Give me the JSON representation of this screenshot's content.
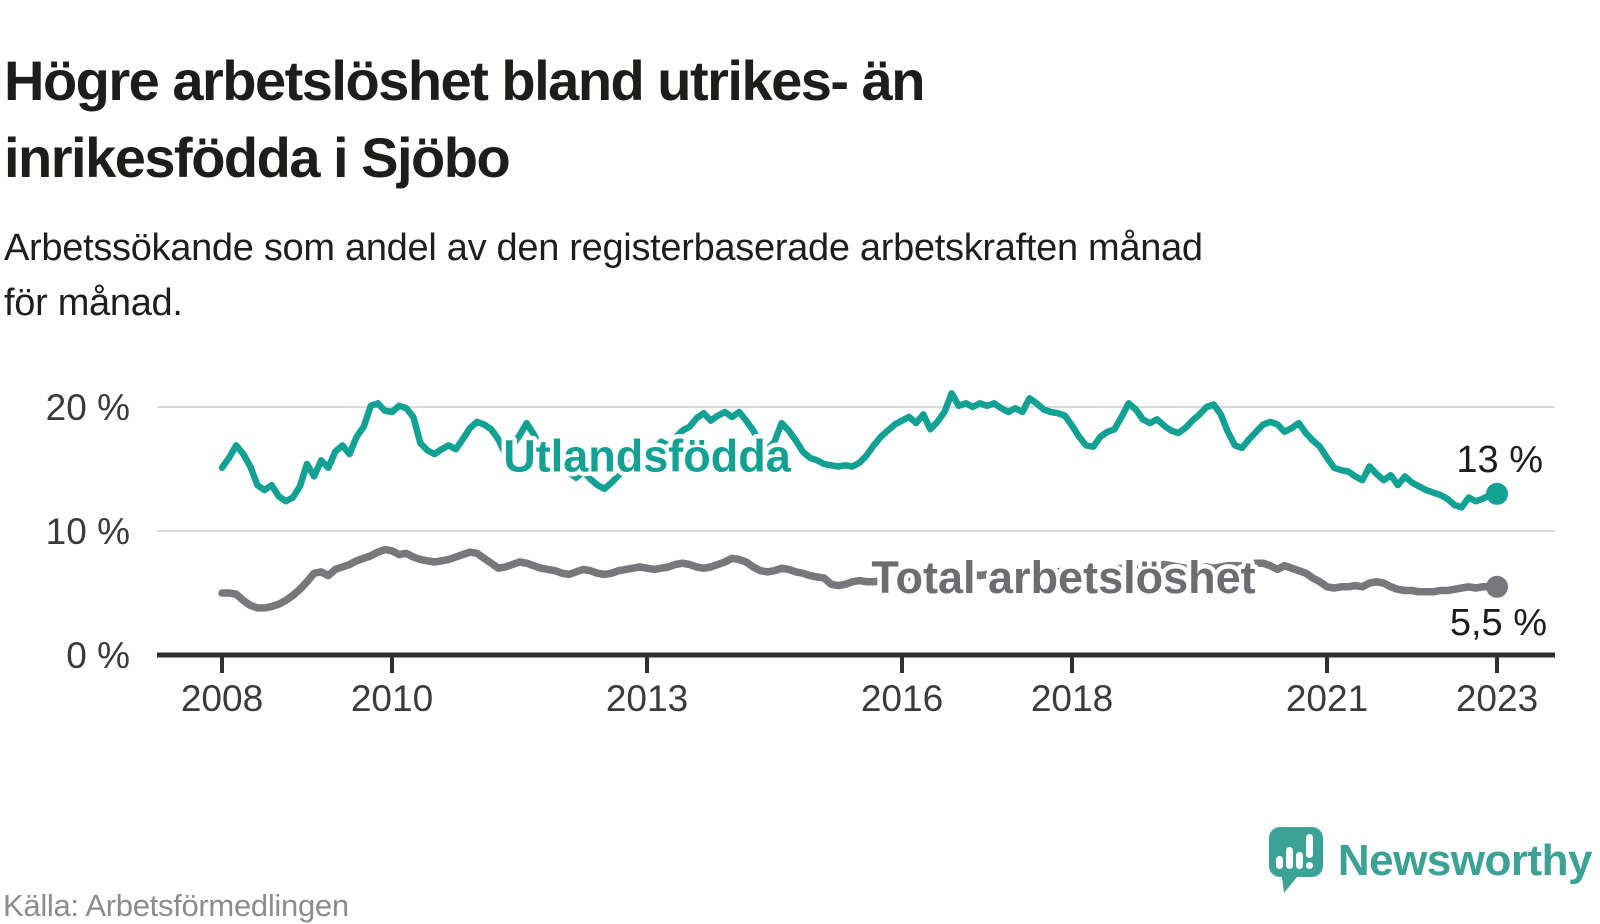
{
  "header": {
    "title": "Högre arbetslöshet bland utrikes- än\ninrikesfödda i Sjöbo",
    "subtitle": "Arbetssökande som andel av den registerbaserade arbetskraften månad\nför månad."
  },
  "footer": {
    "source": "Källa: Arbetsförmedlingen",
    "brand": "Newsworthy"
  },
  "colors": {
    "series_utlandsfodda": "#12a192",
    "series_total": "#78787c",
    "series_total_label": "#6c6c71",
    "grid": "#dadada",
    "axis": "#303030",
    "tick_label": "#3b3b3b",
    "value_label": "#1d1d1b",
    "title_text": "#1d1d1b",
    "source_text": "#8d8d8d",
    "logo": "#3da296"
  },
  "chart_data": {
    "type": "line",
    "title": "Högre arbetslöshet bland utrikes- än inrikesfödda i Sjöbo",
    "xlabel": "",
    "ylabel": "Arbetssökande som andel av den registerbaserade arbetskraften (%)",
    "xlim": [
      2008,
      2023.2
    ],
    "ylim": [
      0,
      22
    ],
    "grid": "horizontal",
    "legend_position": "inline-labels",
    "y_ticks": [
      {
        "value": 20,
        "label": "20 %"
      },
      {
        "value": 10,
        "label": "10 %"
      },
      {
        "value": 0,
        "label": "0 %"
      }
    ],
    "x_ticks": [
      {
        "year": 2008,
        "label": "2008"
      },
      {
        "year": 2010,
        "label": "2010"
      },
      {
        "year": 2013,
        "label": "2013"
      },
      {
        "year": 2016,
        "label": "2016"
      },
      {
        "year": 2018,
        "label": "2018"
      },
      {
        "year": 2021,
        "label": "2021"
      },
      {
        "year": 2023,
        "label": "2023"
      }
    ],
    "series": [
      {
        "name": "Utlandsfödda",
        "color": "#12a192",
        "stroke_width": 6.5,
        "end_label": "13 %",
        "end_value": 13.0,
        "label_pos": {
          "x": 2013.0,
          "y": 16.1
        },
        "x_start": 2008,
        "points_per_year": 12,
        "values": [
          15.1,
          15.9,
          16.9,
          16.2,
          15.2,
          13.7,
          13.3,
          13.7,
          12.8,
          12.4,
          12.7,
          13.6,
          15.4,
          14.4,
          15.7,
          15.1,
          16.4,
          16.9,
          16.2,
          17.6,
          18.4,
          20.1,
          20.3,
          19.7,
          19.6,
          20.1,
          19.9,
          19.2,
          17.1,
          16.5,
          16.2,
          16.6,
          16.9,
          16.6,
          17.4,
          18.3,
          18.8,
          18.6,
          18.2,
          17.4,
          16.2,
          16.9,
          17.7,
          18.7,
          17.8,
          16.7,
          16.0,
          15.6,
          15.1,
          14.7,
          14.3,
          14.8,
          14.2,
          13.7,
          13.4,
          13.9,
          14.5,
          15.1,
          15.7,
          15.4,
          15.9,
          16.6,
          17.2,
          16.9,
          17.5,
          18.1,
          18.4,
          19.1,
          19.5,
          18.9,
          19.3,
          19.6,
          19.2,
          19.6,
          18.9,
          18.1,
          17.0,
          16.6,
          17.2,
          18.7,
          18.1,
          17.3,
          16.4,
          15.9,
          15.7,
          15.4,
          15.3,
          15.2,
          15.3,
          15.2,
          15.5,
          16.1,
          16.9,
          17.6,
          18.1,
          18.6,
          18.9,
          19.2,
          18.7,
          19.4,
          18.2,
          18.8,
          19.6,
          21.1,
          20.1,
          20.3,
          20.0,
          20.3,
          20.1,
          20.3,
          19.9,
          19.6,
          19.9,
          19.6,
          20.7,
          20.3,
          19.8,
          19.6,
          19.5,
          19.3,
          18.5,
          17.6,
          16.9,
          16.8,
          17.6,
          18.0,
          18.2,
          19.2,
          20.3,
          19.8,
          19.0,
          18.7,
          19.0,
          18.5,
          18.1,
          17.9,
          18.3,
          18.9,
          19.4,
          20.0,
          20.2,
          19.4,
          18.0,
          16.9,
          16.7,
          17.4,
          18.0,
          18.6,
          18.8,
          18.6,
          18.0,
          18.3,
          18.7,
          17.9,
          17.3,
          16.8,
          15.9,
          15.1,
          14.9,
          14.8,
          14.4,
          14.1,
          15.2,
          14.6,
          14.1,
          14.5,
          13.7,
          14.4,
          13.9,
          13.6,
          13.3,
          13.1,
          12.9,
          12.6,
          12.1,
          11.9,
          12.7,
          12.4,
          12.6,
          12.9,
          13.0
        ]
      },
      {
        "name": "Total arbetslöshet",
        "color": "#78787c",
        "stroke_width": 7.5,
        "end_label": "5,5 %",
        "end_value": 5.5,
        "label_pos": {
          "x": 2017.9,
          "y": 6.3
        },
        "x_start": 2008,
        "points_per_year": 12,
        "values": [
          5.0,
          5.0,
          4.9,
          4.4,
          4.0,
          3.8,
          3.8,
          3.9,
          4.1,
          4.4,
          4.8,
          5.3,
          5.9,
          6.6,
          6.7,
          6.4,
          6.9,
          7.1,
          7.3,
          7.6,
          7.8,
          8.0,
          8.3,
          8.5,
          8.4,
          8.1,
          8.2,
          7.9,
          7.7,
          7.6,
          7.5,
          7.6,
          7.7,
          7.9,
          8.1,
          8.3,
          8.2,
          7.8,
          7.4,
          7.0,
          7.1,
          7.3,
          7.5,
          7.4,
          7.2,
          7.0,
          6.9,
          6.8,
          6.6,
          6.5,
          6.7,
          6.9,
          6.8,
          6.6,
          6.5,
          6.6,
          6.8,
          6.9,
          7.0,
          7.1,
          7.0,
          6.9,
          7.0,
          7.1,
          7.3,
          7.4,
          7.3,
          7.1,
          7.0,
          7.1,
          7.3,
          7.5,
          7.8,
          7.7,
          7.5,
          7.1,
          6.8,
          6.7,
          6.8,
          7.0,
          6.9,
          6.7,
          6.6,
          6.4,
          6.3,
          6.2,
          5.7,
          5.6,
          5.7,
          5.9,
          6.0,
          5.9,
          5.9,
          6.0,
          6.1,
          6.0,
          6.1,
          6.3,
          6.2,
          6.1,
          6.2,
          6.3,
          6.5,
          6.4,
          6.3,
          6.4,
          6.5,
          6.4,
          6.5,
          6.6,
          6.5,
          6.4,
          6.5,
          6.6,
          6.7,
          6.8,
          6.7,
          6.6,
          6.7,
          6.8,
          6.7,
          6.6,
          6.5,
          6.6,
          6.7,
          6.8,
          6.9,
          7.0,
          7.1,
          7.0,
          6.9,
          7.0,
          7.1,
          7.3,
          7.2,
          7.1,
          7.0,
          6.9,
          7.0,
          7.1,
          7.0,
          7.1,
          7.2,
          7.2,
          7.2,
          7.3,
          7.4,
          7.4,
          7.2,
          6.9,
          7.2,
          7.0,
          6.8,
          6.6,
          6.2,
          5.9,
          5.5,
          5.4,
          5.5,
          5.5,
          5.6,
          5.5,
          5.8,
          5.9,
          5.8,
          5.5,
          5.3,
          5.2,
          5.2,
          5.1,
          5.1,
          5.1,
          5.2,
          5.2,
          5.3,
          5.4,
          5.5,
          5.4,
          5.5,
          5.5,
          5.5
        ]
      }
    ]
  }
}
